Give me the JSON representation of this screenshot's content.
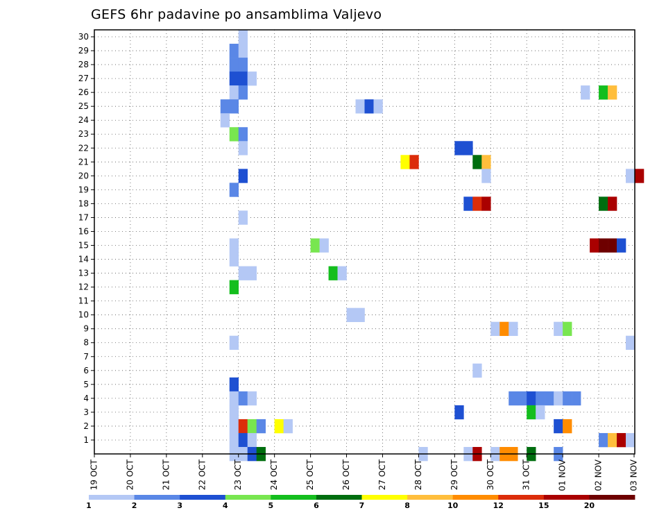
{
  "chart_data": {
    "type": "heatmap",
    "title": "GEFS 6hr padavine po ansamblima Valjevo",
    "xlabel": "",
    "ylabel": "",
    "grid": true,
    "x_ticks": [
      "19 OCT",
      "20 OCT",
      "21 OCT",
      "22 OCT",
      "23 OCT",
      "24 OCT",
      "25 OCT",
      "26 OCT",
      "27 OCT",
      "28 OCT",
      "29 OCT",
      "30 OCT",
      "31 OCT",
      "01 NOV",
      "02 NOV",
      "03 NOV"
    ],
    "y_ticks": [
      "1",
      "2",
      "3",
      "4",
      "5",
      "6",
      "7",
      "8",
      "9",
      "10",
      "11",
      "12",
      "13",
      "14",
      "15",
      "16",
      "17",
      "18",
      "19",
      "20",
      "21",
      "22",
      "23",
      "24",
      "25",
      "26",
      "27",
      "28",
      "29",
      "30"
    ],
    "x_steps": 60,
    "y_range": [
      0,
      30
    ],
    "colorbar": {
      "levels": [
        1,
        2,
        3,
        4,
        5,
        6,
        7,
        8,
        10,
        12,
        15,
        20
      ],
      "labels": [
        "1",
        "2",
        "3",
        "4",
        "5",
        "6",
        "7",
        "8",
        "10",
        "12",
        "15",
        "20"
      ],
      "colors": [
        "#b4c8f5",
        "#5a87e6",
        "#1e50d2",
        "#78e650",
        "#14be1e",
        "#006e0f",
        "#ffff00",
        "#ffbe3c",
        "#ff8c00",
        "#dc2d0a",
        "#aa0000",
        "#6e0000"
      ]
    },
    "cells": [
      [
        16,
        30,
        0
      ],
      [
        15,
        29,
        1
      ],
      [
        16,
        29,
        0
      ],
      [
        15,
        28,
        1
      ],
      [
        16,
        28,
        1
      ],
      [
        15,
        27,
        2
      ],
      [
        16,
        27,
        2
      ],
      [
        17,
        27,
        0
      ],
      [
        15,
        26,
        0
      ],
      [
        16,
        26,
        1
      ],
      [
        14,
        25,
        1
      ],
      [
        15,
        25,
        1
      ],
      [
        14,
        24,
        0
      ],
      [
        15,
        23,
        3
      ],
      [
        16,
        23,
        1
      ],
      [
        16,
        22,
        0
      ],
      [
        16,
        20,
        2
      ],
      [
        15,
        19,
        1
      ],
      [
        16,
        17,
        0
      ],
      [
        15,
        15,
        0
      ],
      [
        15,
        14,
        0
      ],
      [
        16,
        13,
        0
      ],
      [
        17,
        13,
        0
      ],
      [
        15,
        12,
        4
      ],
      [
        15,
        8,
        0
      ],
      [
        15,
        5,
        2
      ],
      [
        15,
        4,
        0
      ],
      [
        16,
        4,
        1
      ],
      [
        17,
        4,
        0
      ],
      [
        15,
        3,
        0
      ],
      [
        15,
        2,
        0
      ],
      [
        16,
        2,
        9
      ],
      [
        17,
        2,
        3
      ],
      [
        18,
        2,
        1
      ],
      [
        15,
        1,
        0
      ],
      [
        16,
        1,
        2
      ],
      [
        17,
        1,
        0
      ],
      [
        15,
        0,
        0
      ],
      [
        16,
        0,
        0
      ],
      [
        17,
        0,
        2
      ],
      [
        18,
        0,
        5
      ],
      [
        20,
        2,
        6
      ],
      [
        21,
        2,
        0
      ],
      [
        24,
        15,
        3
      ],
      [
        25,
        15,
        0
      ],
      [
        26,
        13,
        4
      ],
      [
        27,
        13,
        0
      ],
      [
        28,
        10,
        0
      ],
      [
        29,
        10,
        0
      ],
      [
        29,
        25,
        0
      ],
      [
        30,
        25,
        2
      ],
      [
        31,
        25,
        0
      ],
      [
        34,
        21,
        6
      ],
      [
        35,
        21,
        9
      ],
      [
        36,
        0,
        0
      ],
      [
        40,
        22,
        2
      ],
      [
        41,
        22,
        2
      ],
      [
        40,
        3,
        2
      ],
      [
        41,
        18,
        2
      ],
      [
        42,
        18,
        9
      ],
      [
        43,
        18,
        10
      ],
      [
        41,
        0,
        0
      ],
      [
        42,
        0,
        10
      ],
      [
        42,
        21,
        5
      ],
      [
        43,
        21,
        7
      ],
      [
        43,
        20,
        0
      ],
      [
        42,
        6,
        0
      ],
      [
        44,
        9,
        0
      ],
      [
        45,
        9,
        8
      ],
      [
        46,
        9,
        0
      ],
      [
        44,
        0,
        0
      ],
      [
        45,
        0,
        8
      ],
      [
        46,
        0,
        8
      ],
      [
        46,
        4,
        1
      ],
      [
        47,
        4,
        1
      ],
      [
        48,
        4,
        2
      ],
      [
        49,
        4,
        1
      ],
      [
        50,
        4,
        1
      ],
      [
        48,
        3,
        4
      ],
      [
        49,
        3,
        0
      ],
      [
        48,
        0,
        5
      ],
      [
        51,
        4,
        0
      ],
      [
        52,
        4,
        1
      ],
      [
        53,
        4,
        1
      ],
      [
        51,
        9,
        0
      ],
      [
        52,
        9,
        3
      ],
      [
        51,
        2,
        2
      ],
      [
        52,
        2,
        8
      ],
      [
        51,
        0,
        1
      ],
      [
        54,
        26,
        0
      ],
      [
        56,
        26,
        4
      ],
      [
        57,
        26,
        7
      ],
      [
        55,
        15,
        10
      ],
      [
        56,
        15,
        11
      ],
      [
        57,
        15,
        11
      ],
      [
        58,
        15,
        2
      ],
      [
        56,
        18,
        5
      ],
      [
        57,
        18,
        10
      ],
      [
        56,
        1,
        1
      ],
      [
        57,
        1,
        7
      ],
      [
        58,
        1,
        10
      ],
      [
        59,
        1,
        0
      ],
      [
        59,
        20,
        0
      ],
      [
        60,
        20,
        10
      ],
      [
        59,
        8,
        0
      ]
    ]
  }
}
